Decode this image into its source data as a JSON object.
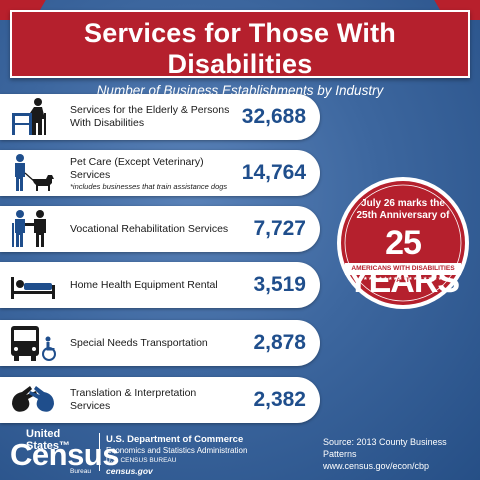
{
  "header": {
    "title": "Services for Those With Disabilities",
    "subtitle": "Number of Business Establishments by Industry"
  },
  "industries": [
    {
      "label": "Services for the Elderly & Persons With Disabilities",
      "note": "",
      "value": "32,688",
      "icon": "elderly-walker-icon"
    },
    {
      "label": "Pet Care (Except Veterinary) Services",
      "note": "*includes businesses that train assistance dogs",
      "value": "14,764",
      "icon": "service-dog-icon"
    },
    {
      "label": "Vocational Rehabilitation Services",
      "note": "",
      "value": "7,727",
      "icon": "rehabilitation-icon"
    },
    {
      "label": "Home Health Equipment Rental",
      "note": "",
      "value": "3,519",
      "icon": "hospital-bed-icon"
    },
    {
      "label": "Special Needs Transportation",
      "note": "",
      "value": "2,878",
      "icon": "bus-wheelchair-icon"
    },
    {
      "label": "Translation & Interpretation Services",
      "note": "",
      "value": "2,382",
      "icon": "sign-language-icon"
    }
  ],
  "seal": {
    "line1": "July 26 marks the",
    "line2": "25th Anniversary of",
    "big": "25 YEARS",
    "band": "AMERICANS WITH DISABILITIES ACT",
    "stars": "★★★★★★★★★★★★★★★★"
  },
  "footer": {
    "logo_us": "United States™",
    "logo_census": "Census",
    "logo_bureau": "Bureau",
    "dept_line1": "U.S. Department of Commerce",
    "dept_line2": "Economics and Statistics Administration",
    "dept_line3": "U.S. CENSUS BUREAU",
    "dept_line4": "census.gov",
    "source_line1": "Source: 2013 County Business Patterns",
    "source_line2": "www.census.gov/econ/cbp"
  },
  "colors": {
    "banner_red": "#b5202d",
    "value_blue": "#1f4e8c",
    "background_blue": "#3d679f"
  }
}
